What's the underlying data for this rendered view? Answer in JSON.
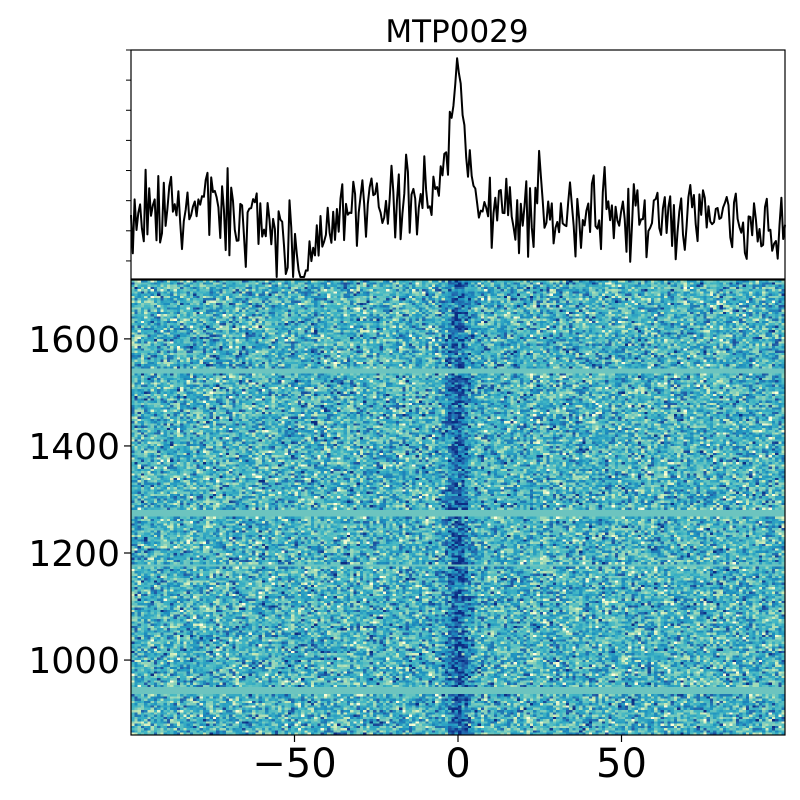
{
  "chart_data": [
    {
      "type": "line",
      "panel": "profile",
      "title": "MTP0029",
      "xlabel": "",
      "ylabel": "",
      "xlim": [
        -100,
        100
      ],
      "ylim": [
        -1.2,
        3.2
      ],
      "grid": false,
      "color": "#000000",
      "y_ticks_labeled": false,
      "peak": {
        "center": 0,
        "amplitude": 2.6,
        "width": 2.2
      },
      "noise_sigma": 0.4,
      "x": [
        -100,
        -80,
        -60,
        -45,
        -40,
        -20,
        -10,
        -5,
        -3,
        -1,
        0,
        1,
        3,
        5,
        10,
        20,
        40,
        60,
        80,
        100
      ],
      "y": [
        0.05,
        0.1,
        0.0,
        -1.1,
        0.1,
        0.3,
        0.4,
        0.6,
        1.4,
        2.2,
        2.9,
        2.1,
        1.2,
        0.5,
        0.2,
        0.0,
        0.1,
        0.0,
        0.1,
        -0.5
      ]
    },
    {
      "type": "heatmap",
      "panel": "dynamic-spectrum",
      "xlabel": "",
      "ylabel": "",
      "xlim": [
        -100,
        100
      ],
      "ylim": [
        860,
        1710
      ],
      "x_ticks": [
        -50,
        0,
        50
      ],
      "y_ticks": [
        1000,
        1200,
        1400,
        1600
      ],
      "colormap": "YlGnBu",
      "colors": [
        "#ffffd9",
        "#c7e9b4",
        "#7fcdbb",
        "#41b6c4",
        "#1d91c0",
        "#225ea8",
        "#0c2c84"
      ],
      "columns": 200,
      "rows": 200,
      "flagged_color": "#6cc4bf",
      "flagged_bands": [
        [
          938,
          948
        ],
        [
          1266,
          1282
        ],
        [
          1536,
          1544
        ],
        [
          1176,
          1180
        ]
      ],
      "signal": {
        "center": 0,
        "width": 2.5,
        "strength": 0.32
      }
    }
  ]
}
